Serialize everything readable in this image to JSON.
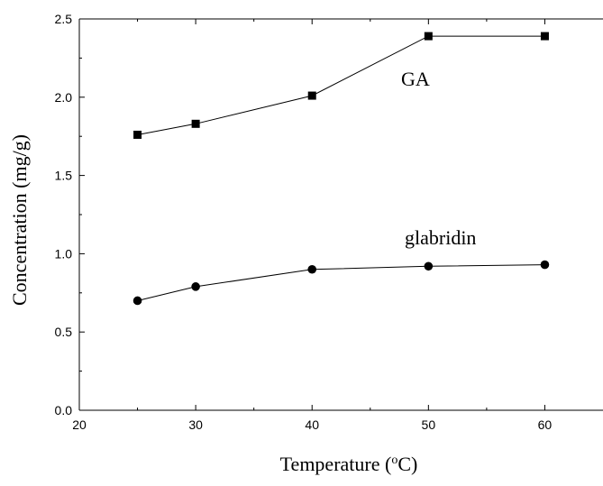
{
  "chart_data": {
    "type": "line",
    "title": "",
    "xlabel_main": "Temperature (",
    "xlabel_sup": "o",
    "xlabel_tail": "C)",
    "ylabel": "Concentration (mg/g)",
    "xlim": [
      20,
      65
    ],
    "ylim": [
      0,
      2.5
    ],
    "x_ticks": [
      20,
      30,
      40,
      50,
      60
    ],
    "y_ticks": [
      0,
      0.5,
      1,
      1.5,
      2,
      2.5
    ],
    "x_tick_labels": [
      "20",
      "30",
      "40",
      "50",
      "60"
    ],
    "y_tick_labels": [
      "0.0",
      "0.5",
      "1.0",
      "1.5",
      "2.0",
      "2.5"
    ],
    "grid": false,
    "series": [
      {
        "name": "GA",
        "marker": "square",
        "x": [
          25,
          30,
          40,
          50,
          60
        ],
        "y": [
          1.76,
          1.83,
          2.01,
          2.39,
          2.39
        ]
      },
      {
        "name": "glabridin",
        "marker": "circle",
        "x": [
          25,
          30,
          40,
          50,
          60
        ],
        "y": [
          0.7,
          0.79,
          0.9,
          0.92,
          0.93
        ]
      }
    ],
    "colors": {
      "line": "#000000",
      "marker": "#000000",
      "axis": "#000000",
      "background": "#ffffff"
    }
  }
}
